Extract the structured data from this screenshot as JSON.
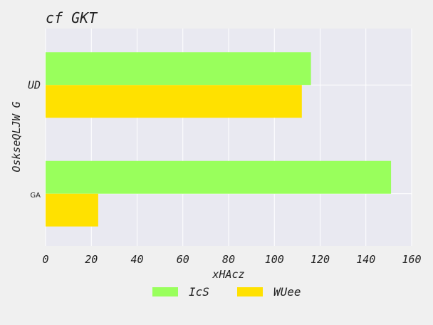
{
  "chart_data": {
    "type": "bar",
    "orientation": "horizontal",
    "title": "cf GKT",
    "xlabel": "xHAcz",
    "ylabel": "OskseQLJW G",
    "categories": [
      "UD",
      "GA"
    ],
    "series": [
      {
        "name": "IcS",
        "values": [
          116,
          151
        ],
        "color": "#99ff5c"
      },
      {
        "name": "WUee",
        "values": [
          112,
          23
        ],
        "color": "#ffe100"
      }
    ],
    "xlim": [
      0,
      160
    ],
    "xticks": [
      0,
      20,
      40,
      60,
      80,
      100,
      120,
      140,
      160
    ],
    "grid": true,
    "legend": "bottom-center"
  },
  "colors": {
    "plot_bg": "#e9e9f1",
    "grid": "#ffffff",
    "page_bg": "#f0f0f0"
  }
}
